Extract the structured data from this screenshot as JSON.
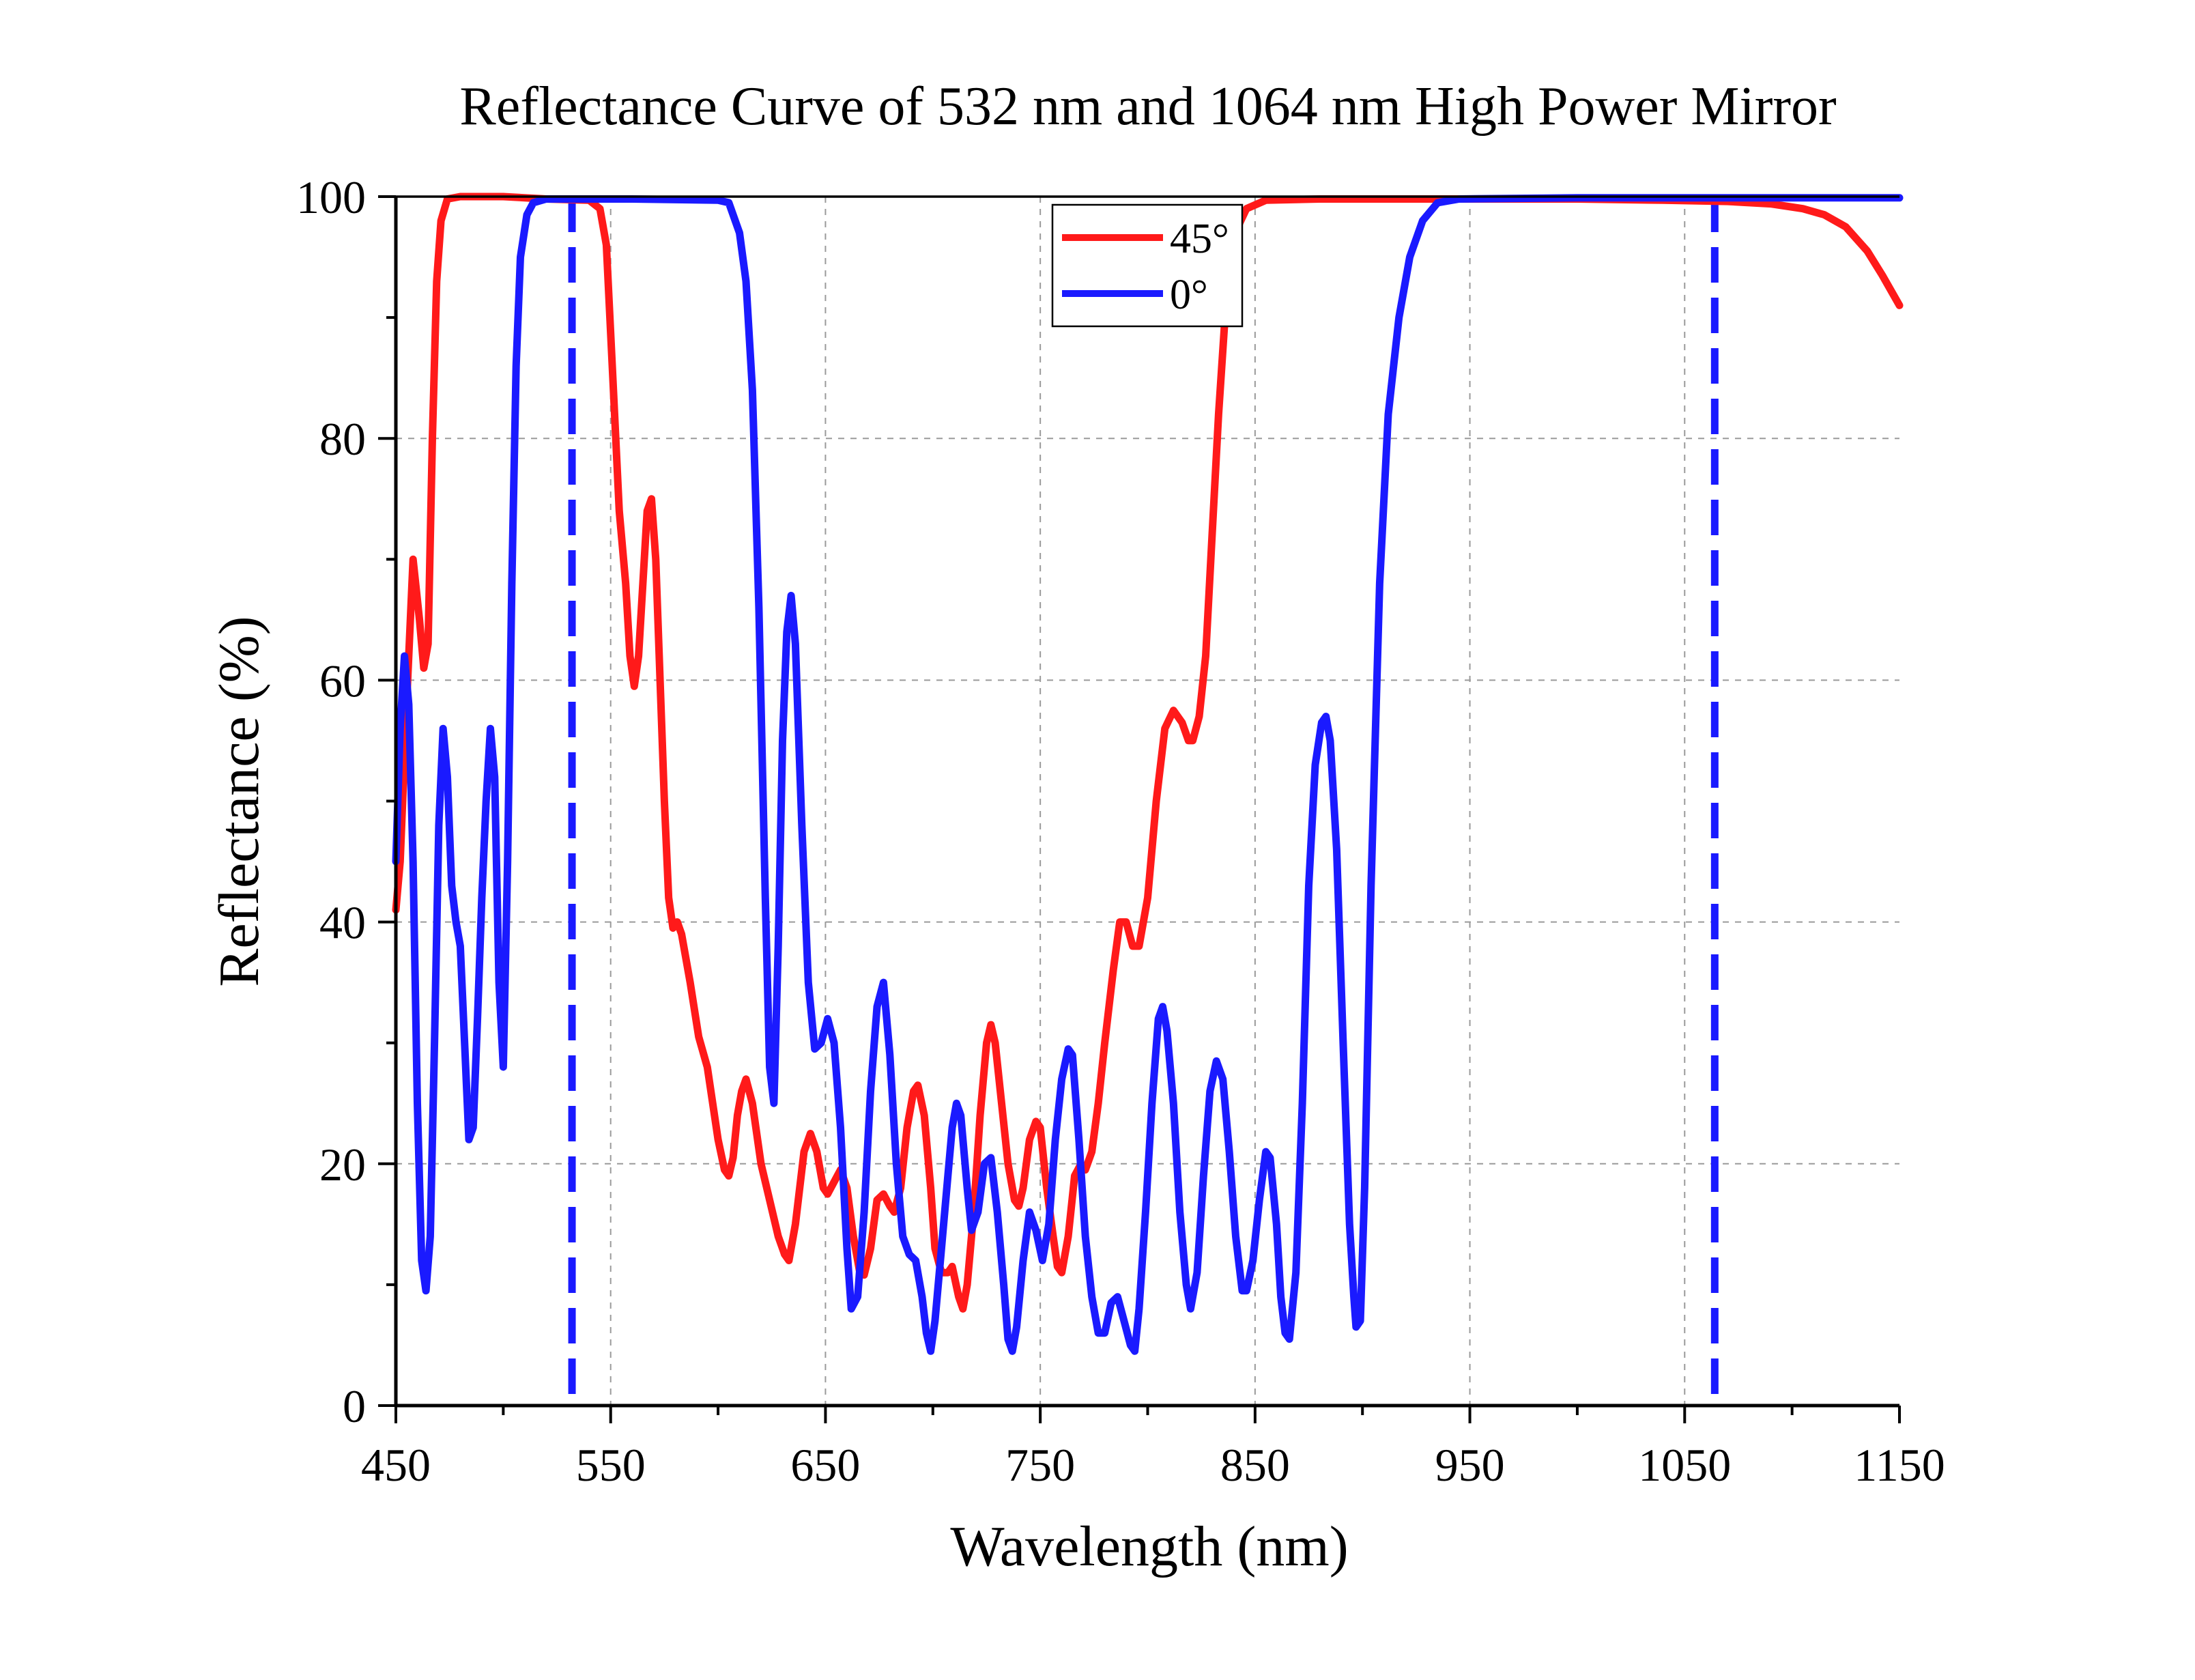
{
  "chart_data": {
    "type": "line",
    "title": "Reflectance Curve of 532 nm and 1064 nm High Power Mirror",
    "xlabel": "Wavelength (nm)",
    "ylabel": "Reflectance (%)",
    "xlim": [
      450,
      1150
    ],
    "ylim": [
      0,
      100
    ],
    "xticks": [
      450,
      550,
      650,
      750,
      850,
      950,
      1050,
      1150
    ],
    "yticks": [
      0,
      20,
      40,
      60,
      80,
      100
    ],
    "grid": true,
    "legend_position": "top-center",
    "reference_lines": [
      {
        "x": 532,
        "style": "dashed",
        "color": "#1a1aff"
      },
      {
        "x": 1064,
        "style": "dashed",
        "color": "#1a1aff"
      }
    ],
    "series": [
      {
        "name": "45°",
        "color": "#ff1a1a",
        "points": [
          [
            450,
            41
          ],
          [
            452,
            45
          ],
          [
            455,
            58
          ],
          [
            458,
            70
          ],
          [
            461,
            65
          ],
          [
            463,
            61
          ],
          [
            465,
            63
          ],
          [
            467,
            80
          ],
          [
            469,
            93
          ],
          [
            471,
            98
          ],
          [
            474,
            99.8
          ],
          [
            480,
            100
          ],
          [
            500,
            100
          ],
          [
            520,
            99.8
          ],
          [
            540,
            99.7
          ],
          [
            545,
            99
          ],
          [
            548,
            96
          ],
          [
            551,
            85
          ],
          [
            554,
            74
          ],
          [
            557,
            68
          ],
          [
            559,
            62
          ],
          [
            561,
            59.5
          ],
          [
            563,
            62
          ],
          [
            565,
            68
          ],
          [
            567,
            74
          ],
          [
            569,
            75
          ],
          [
            571,
            70
          ],
          [
            573,
            60
          ],
          [
            575,
            50
          ],
          [
            577,
            42
          ],
          [
            579,
            39.5
          ],
          [
            581,
            40
          ],
          [
            583,
            39
          ],
          [
            587,
            35
          ],
          [
            591,
            30.5
          ],
          [
            595,
            28
          ],
          [
            600,
            22
          ],
          [
            603,
            19.5
          ],
          [
            605,
            19
          ],
          [
            607,
            20.5
          ],
          [
            609,
            24
          ],
          [
            611,
            26
          ],
          [
            613,
            27
          ],
          [
            616,
            25
          ],
          [
            620,
            20
          ],
          [
            624,
            17
          ],
          [
            628,
            14
          ],
          [
            631,
            12.5
          ],
          [
            633,
            12
          ],
          [
            636,
            15
          ],
          [
            640,
            21
          ],
          [
            643,
            22.5
          ],
          [
            646,
            21
          ],
          [
            649,
            18
          ],
          [
            651,
            17.5
          ],
          [
            654,
            18.5
          ],
          [
            657,
            19.5
          ],
          [
            660,
            18
          ],
          [
            663,
            14
          ],
          [
            666,
            11
          ],
          [
            668,
            10.8
          ],
          [
            671,
            13
          ],
          [
            674,
            17
          ],
          [
            677,
            17.5
          ],
          [
            680,
            16.5
          ],
          [
            682,
            16
          ],
          [
            685,
            18
          ],
          [
            688,
            23
          ],
          [
            691,
            26
          ],
          [
            693,
            26.5
          ],
          [
            696,
            24
          ],
          [
            699,
            18
          ],
          [
            701,
            13
          ],
          [
            704,
            11
          ],
          [
            707,
            11
          ],
          [
            709,
            11.5
          ],
          [
            712,
            9
          ],
          [
            714,
            8
          ],
          [
            716,
            10
          ],
          [
            719,
            16
          ],
          [
            722,
            24
          ],
          [
            725,
            30
          ],
          [
            727,
            31.5
          ],
          [
            729,
            30
          ],
          [
            732,
            25
          ],
          [
            735,
            20
          ],
          [
            738,
            17
          ],
          [
            740,
            16.5
          ],
          [
            742,
            18
          ],
          [
            745,
            22
          ],
          [
            748,
            23.5
          ],
          [
            750,
            23
          ],
          [
            753,
            18
          ],
          [
            756,
            14
          ],
          [
            758,
            11.5
          ],
          [
            760,
            11
          ],
          [
            763,
            14
          ],
          [
            766,
            19
          ],
          [
            769,
            20
          ],
          [
            771,
            19.5
          ],
          [
            774,
            21
          ],
          [
            777,
            25
          ],
          [
            780,
            30
          ],
          [
            784,
            36
          ],
          [
            787,
            40
          ],
          [
            790,
            40
          ],
          [
            793,
            38
          ],
          [
            796,
            38
          ],
          [
            800,
            42
          ],
          [
            804,
            50
          ],
          [
            808,
            56
          ],
          [
            812,
            57.5
          ],
          [
            816,
            56.5
          ],
          [
            819,
            55
          ],
          [
            821,
            55
          ],
          [
            824,
            57
          ],
          [
            827,
            62
          ],
          [
            830,
            72
          ],
          [
            833,
            82
          ],
          [
            836,
            90
          ],
          [
            839,
            95
          ],
          [
            842,
            97.5
          ],
          [
            846,
            99
          ],
          [
            855,
            99.7
          ],
          [
            880,
            99.8
          ],
          [
            940,
            99.8
          ],
          [
            1000,
            99.8
          ],
          [
            1040,
            99.7
          ],
          [
            1070,
            99.6
          ],
          [
            1090,
            99.4
          ],
          [
            1105,
            99
          ],
          [
            1115,
            98.5
          ],
          [
            1125,
            97.5
          ],
          [
            1135,
            95.5
          ],
          [
            1142,
            93.5
          ],
          [
            1150,
            91
          ]
        ]
      },
      {
        "name": "0°",
        "color": "#1a1aff",
        "points": [
          [
            450,
            45
          ],
          [
            452,
            56
          ],
          [
            454,
            62
          ],
          [
            456,
            58
          ],
          [
            458,
            45
          ],
          [
            460,
            25
          ],
          [
            462,
            12
          ],
          [
            464,
            9.5
          ],
          [
            466,
            14
          ],
          [
            468,
            30
          ],
          [
            470,
            48
          ],
          [
            472,
            56
          ],
          [
            474,
            52
          ],
          [
            476,
            43
          ],
          [
            478,
            40
          ],
          [
            480,
            38
          ],
          [
            482,
            30
          ],
          [
            484,
            22
          ],
          [
            486,
            23
          ],
          [
            488,
            32
          ],
          [
            490,
            42
          ],
          [
            492,
            50
          ],
          [
            494,
            56
          ],
          [
            496,
            52
          ],
          [
            498,
            35
          ],
          [
            500,
            28
          ],
          [
            502,
            45
          ],
          [
            504,
            68
          ],
          [
            506,
            86
          ],
          [
            508,
            95
          ],
          [
            511,
            98.5
          ],
          [
            514,
            99.5
          ],
          [
            520,
            99.8
          ],
          [
            560,
            99.8
          ],
          [
            600,
            99.7
          ],
          [
            605,
            99.5
          ],
          [
            610,
            97
          ],
          [
            613,
            93
          ],
          [
            616,
            84
          ],
          [
            619,
            66
          ],
          [
            622,
            42
          ],
          [
            624,
            28
          ],
          [
            626,
            25
          ],
          [
            628,
            38
          ],
          [
            630,
            55
          ],
          [
            632,
            64
          ],
          [
            634,
            67
          ],
          [
            636,
            63
          ],
          [
            639,
            48
          ],
          [
            642,
            35
          ],
          [
            645,
            29.5
          ],
          [
            648,
            30
          ],
          [
            651,
            32
          ],
          [
            654,
            30
          ],
          [
            657,
            23
          ],
          [
            660,
            13
          ],
          [
            662,
            8
          ],
          [
            665,
            9
          ],
          [
            668,
            16
          ],
          [
            671,
            26
          ],
          [
            674,
            33
          ],
          [
            677,
            35
          ],
          [
            680,
            29
          ],
          [
            683,
            20
          ],
          [
            686,
            14
          ],
          [
            689,
            12.5
          ],
          [
            692,
            12
          ],
          [
            695,
            9
          ],
          [
            697,
            6
          ],
          [
            699,
            4.5
          ],
          [
            701,
            7
          ],
          [
            704,
            13
          ],
          [
            707,
            19
          ],
          [
            709,
            23
          ],
          [
            711,
            25
          ],
          [
            713,
            24
          ],
          [
            716,
            18
          ],
          [
            718,
            14.5
          ],
          [
            721,
            16
          ],
          [
            724,
            20
          ],
          [
            727,
            20.5
          ],
          [
            730,
            16
          ],
          [
            733,
            10
          ],
          [
            735,
            5.5
          ],
          [
            737,
            4.5
          ],
          [
            739,
            6.5
          ],
          [
            742,
            12
          ],
          [
            745,
            16
          ],
          [
            748,
            14.5
          ],
          [
            751,
            12
          ],
          [
            754,
            15
          ],
          [
            757,
            22
          ],
          [
            760,
            27
          ],
          [
            763,
            29.5
          ],
          [
            765,
            29
          ],
          [
            768,
            22
          ],
          [
            771,
            14
          ],
          [
            774,
            9
          ],
          [
            777,
            6
          ],
          [
            780,
            6
          ],
          [
            783,
            8.5
          ],
          [
            786,
            9
          ],
          [
            789,
            7
          ],
          [
            792,
            5
          ],
          [
            794,
            4.5
          ],
          [
            796,
            8
          ],
          [
            799,
            16
          ],
          [
            802,
            25
          ],
          [
            805,
            32
          ],
          [
            807,
            33
          ],
          [
            809,
            31
          ],
          [
            812,
            25
          ],
          [
            815,
            16
          ],
          [
            818,
            10
          ],
          [
            820,
            8
          ],
          [
            823,
            11
          ],
          [
            826,
            19
          ],
          [
            829,
            26
          ],
          [
            832,
            28.5
          ],
          [
            835,
            27
          ],
          [
            838,
            21
          ],
          [
            841,
            14
          ],
          [
            844,
            9.5
          ],
          [
            846,
            9.5
          ],
          [
            849,
            12
          ],
          [
            852,
            17
          ],
          [
            855,
            21
          ],
          [
            857,
            20.5
          ],
          [
            860,
            15
          ],
          [
            862,
            9
          ],
          [
            864,
            6
          ],
          [
            866,
            5.5
          ],
          [
            869,
            11
          ],
          [
            872,
            25
          ],
          [
            875,
            43
          ],
          [
            878,
            53
          ],
          [
            881,
            56.5
          ],
          [
            883,
            57
          ],
          [
            885,
            55
          ],
          [
            888,
            46
          ],
          [
            891,
            30
          ],
          [
            894,
            15
          ],
          [
            896,
            9
          ],
          [
            897,
            6.5
          ],
          [
            899,
            7
          ],
          [
            901,
            18
          ],
          [
            904,
            43
          ],
          [
            908,
            68
          ],
          [
            912,
            82
          ],
          [
            917,
            90
          ],
          [
            922,
            95
          ],
          [
            928,
            98
          ],
          [
            935,
            99.5
          ],
          [
            945,
            99.8
          ],
          [
            1000,
            99.9
          ],
          [
            1150,
            99.9
          ]
        ]
      }
    ]
  }
}
